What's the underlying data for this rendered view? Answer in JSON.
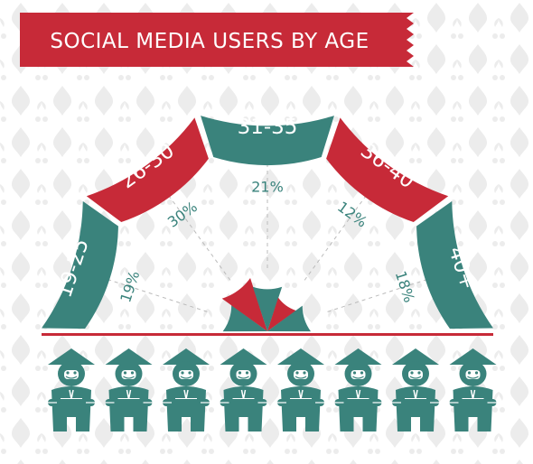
{
  "title": "SOCIAL MEDIA USERS BY AGE",
  "colors": {
    "banner": "#c72a38",
    "teal": "#3a837c",
    "red": "#c72a38",
    "label_text": "#ffffff",
    "percent_text": "#3a837c",
    "baseline": "#c72a38",
    "pattern": "#ececec",
    "dashed": "#bbbbbb"
  },
  "chart_data": {
    "type": "pie",
    "title": "SOCIAL MEDIA USERS BY AGE",
    "categories": [
      "19-25",
      "26-30",
      "31-35",
      "36-40",
      "40+"
    ],
    "values": [
      19,
      30,
      21,
      12,
      18
    ],
    "unit": "%",
    "value_labels": [
      "19%",
      "30%",
      "21%",
      "12%",
      "18%"
    ],
    "slice_colors": [
      "#3a837c",
      "#c72a38",
      "#3a837c",
      "#c72a38",
      "#3a837c"
    ],
    "legend": "none"
  },
  "figures": {
    "count": 8,
    "icon": "person-with-conical-hat-icon"
  }
}
